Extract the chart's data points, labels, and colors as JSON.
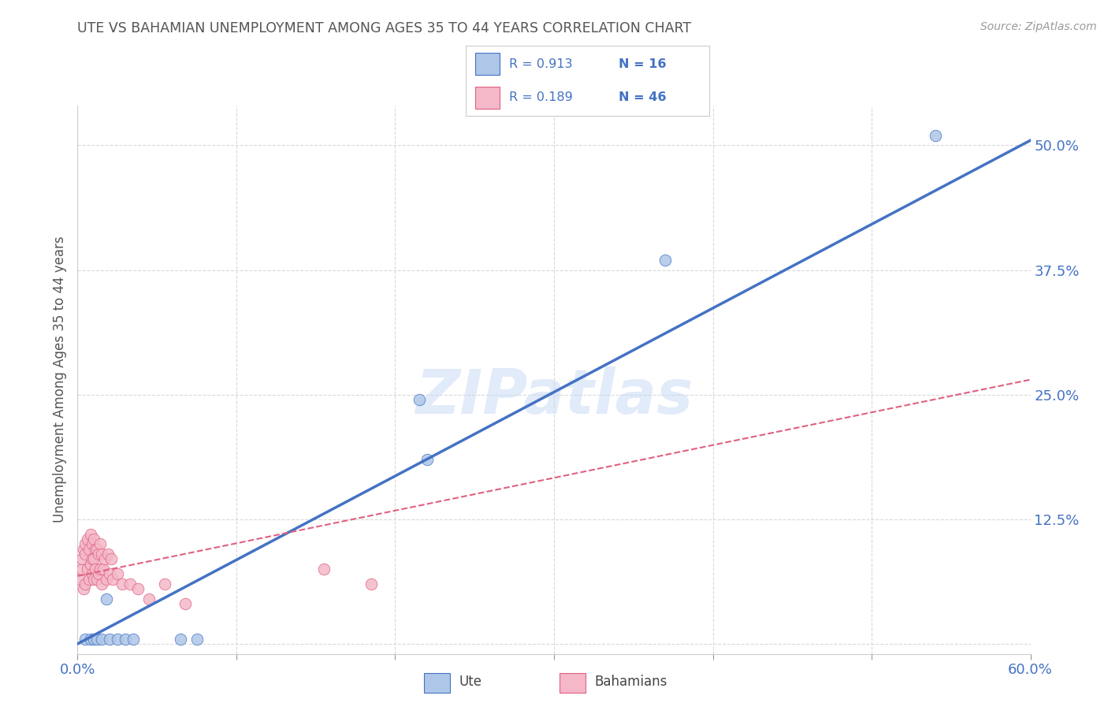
{
  "title": "UTE VS BAHAMIAN UNEMPLOYMENT AMONG AGES 35 TO 44 YEARS CORRELATION CHART",
  "source": "Source: ZipAtlas.com",
  "ylabel": "Unemployment Among Ages 35 to 44 years",
  "xlim": [
    0.0,
    0.6
  ],
  "ylim": [
    -0.01,
    0.54
  ],
  "yticks": [
    0.0,
    0.125,
    0.25,
    0.375,
    0.5
  ],
  "ytick_labels": [
    "",
    "12.5%",
    "25.0%",
    "37.5%",
    "50.0%"
  ],
  "xticks": [
    0.0,
    0.1,
    0.2,
    0.3,
    0.4,
    0.5,
    0.6
  ],
  "xtick_labels": [
    "0.0%",
    "",
    "",
    "",
    "",
    "",
    "60.0%"
  ],
  "ute_color": "#aec6e8",
  "bahamian_color": "#f4b8c8",
  "ute_line_color": "#4472c4",
  "bahamian_line_color": "#e06080",
  "grid_color": "#d9d9d9",
  "axis_color": "#4472c4",
  "watermark": "ZIPatlas",
  "ute_points_x": [
    0.005,
    0.008,
    0.01,
    0.012,
    0.015,
    0.018,
    0.02,
    0.025,
    0.03,
    0.035,
    0.065,
    0.075,
    0.215,
    0.22,
    0.37,
    0.54
  ],
  "ute_points_y": [
    0.005,
    0.005,
    0.005,
    0.005,
    0.005,
    0.045,
    0.005,
    0.005,
    0.005,
    0.005,
    0.005,
    0.005,
    0.245,
    0.185,
    0.385,
    0.51
  ],
  "ute_line_x": [
    0.0,
    0.6
  ],
  "ute_line_y": [
    0.0,
    0.505
  ],
  "bahamian_points_x": [
    0.002,
    0.003,
    0.003,
    0.004,
    0.004,
    0.005,
    0.005,
    0.005,
    0.006,
    0.006,
    0.007,
    0.007,
    0.008,
    0.008,
    0.009,
    0.009,
    0.009,
    0.01,
    0.01,
    0.01,
    0.011,
    0.011,
    0.012,
    0.012,
    0.013,
    0.013,
    0.014,
    0.014,
    0.015,
    0.015,
    0.016,
    0.017,
    0.018,
    0.019,
    0.02,
    0.021,
    0.022,
    0.025,
    0.028,
    0.033,
    0.038,
    0.045,
    0.055,
    0.068,
    0.155,
    0.185
  ],
  "bahamian_points_y": [
    0.065,
    0.075,
    0.085,
    0.055,
    0.095,
    0.09,
    0.06,
    0.1,
    0.075,
    0.105,
    0.065,
    0.095,
    0.08,
    0.11,
    0.07,
    0.085,
    0.1,
    0.065,
    0.085,
    0.105,
    0.075,
    0.095,
    0.065,
    0.095,
    0.07,
    0.09,
    0.075,
    0.1,
    0.06,
    0.09,
    0.075,
    0.085,
    0.065,
    0.09,
    0.07,
    0.085,
    0.065,
    0.07,
    0.06,
    0.06,
    0.055,
    0.045,
    0.06,
    0.04,
    0.075,
    0.06
  ],
  "bahamian_line_x": [
    0.0,
    0.6
  ],
  "bahamian_line_y": [
    0.068,
    0.265
  ]
}
